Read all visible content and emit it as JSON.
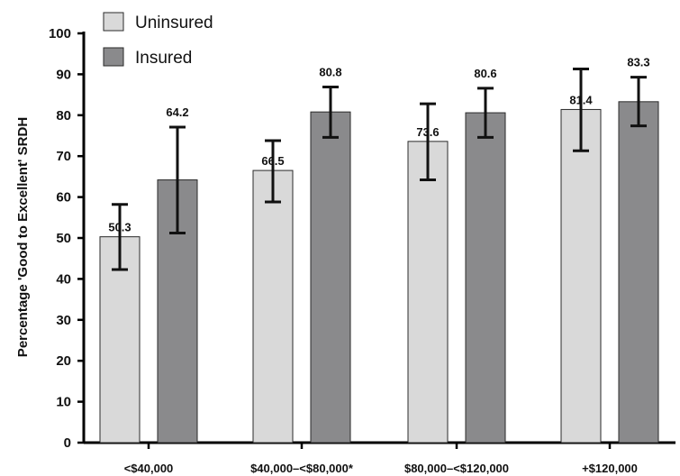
{
  "chart_data": {
    "type": "bar",
    "title": "",
    "xlabel": "",
    "ylabel": "Percentage 'Good to Excellent' SRDH",
    "ylim": [
      0,
      100
    ],
    "yticks": [
      0,
      10,
      20,
      30,
      40,
      50,
      60,
      70,
      80,
      90,
      100
    ],
    "categories": [
      "<$40,000",
      "$40,000–<$80,000*",
      "$80,000–<$120,000",
      "+$120,000"
    ],
    "series": [
      {
        "name": "Uninsured",
        "color": "#d9d9d9",
        "values": [
          50.3,
          66.5,
          73.6,
          81.4
        ],
        "labels": [
          "50.3",
          "66.5",
          "73.6",
          "81.4"
        ],
        "error_low": [
          42.3,
          58.8,
          64.2,
          71.3
        ],
        "error_high": [
          58.2,
          73.8,
          82.8,
          91.3
        ]
      },
      {
        "name": "Insured",
        "color": "#8a8a8c",
        "values": [
          64.2,
          80.8,
          80.6,
          83.3
        ],
        "labels": [
          "64.2",
          "80.8",
          "80.6",
          "83.3"
        ],
        "error_low": [
          51.2,
          74.6,
          74.6,
          77.4
        ],
        "error_high": [
          77.1,
          86.9,
          86.6,
          89.3
        ]
      }
    ],
    "legend_position": "top-left",
    "grid": false
  }
}
